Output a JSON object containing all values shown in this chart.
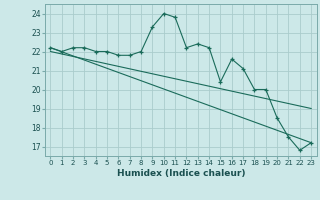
{
  "title": "",
  "xlabel": "Humidex (Indice chaleur)",
  "ylabel": "",
  "xlim": [
    -0.5,
    23.5
  ],
  "ylim": [
    16.5,
    24.5
  ],
  "yticks": [
    17,
    18,
    19,
    20,
    21,
    22,
    23,
    24
  ],
  "xticks": [
    0,
    1,
    2,
    3,
    4,
    5,
    6,
    7,
    8,
    9,
    10,
    11,
    12,
    13,
    14,
    15,
    16,
    17,
    18,
    19,
    20,
    21,
    22,
    23
  ],
  "bg_color": "#cce8e8",
  "grid_color": "#aacccc",
  "line_color": "#1a6b5a",
  "main_data_x": [
    0,
    1,
    2,
    3,
    4,
    5,
    6,
    7,
    8,
    9,
    10,
    11,
    12,
    13,
    14,
    15,
    16,
    17,
    18,
    19,
    20,
    21,
    22,
    23
  ],
  "main_data_y": [
    22.2,
    22.0,
    22.2,
    22.2,
    22.0,
    22.0,
    21.8,
    21.8,
    22.0,
    23.3,
    24.0,
    23.8,
    22.2,
    22.4,
    22.2,
    20.4,
    21.6,
    21.1,
    20.0,
    20.0,
    18.5,
    17.5,
    16.8,
    17.2
  ],
  "trend1_x": [
    0,
    23
  ],
  "trend1_y": [
    22.2,
    17.2
  ],
  "trend2_x": [
    0,
    23
  ],
  "trend2_y": [
    22.0,
    19.0
  ]
}
